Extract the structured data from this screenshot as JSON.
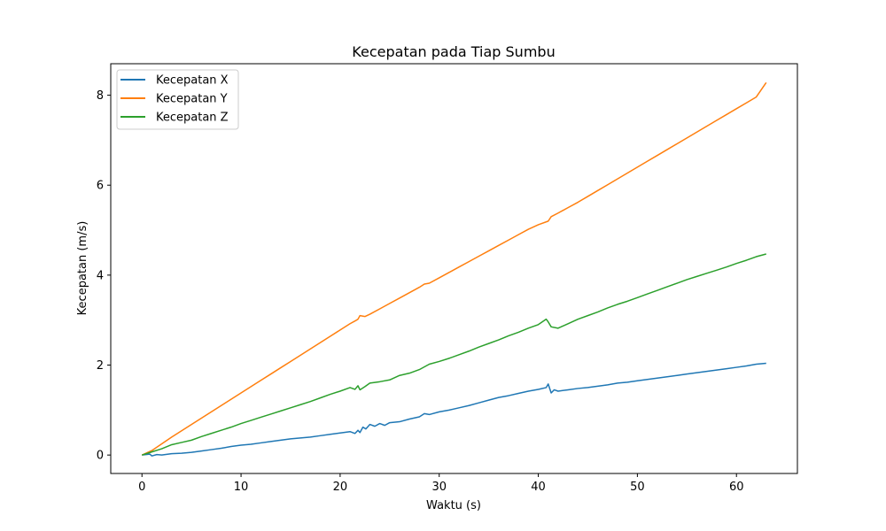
{
  "chart_data": {
    "type": "line",
    "title": "Kecepatan pada Tiap Sumbu",
    "xlabel": "Waktu (s)",
    "ylabel": "Kecepatan (m/s)",
    "xlim": [
      -3.15,
      66.15
    ],
    "ylim": [
      -0.41,
      8.7
    ],
    "xticks": [
      0,
      10,
      20,
      30,
      40,
      50,
      60
    ],
    "yticks": [
      0,
      2,
      4,
      6,
      8
    ],
    "grid": false,
    "legend_position": "upper-left",
    "series": [
      {
        "name": "Kecepatan X",
        "color": "#1f77b4",
        "points": [
          [
            0,
            0
          ],
          [
            0.8,
            0.02
          ],
          [
            1,
            -0.02
          ],
          [
            1.5,
            0.01
          ],
          [
            2,
            0
          ],
          [
            3,
            0.03
          ],
          [
            4,
            0.04
          ],
          [
            5,
            0.06
          ],
          [
            6,
            0.09
          ],
          [
            7,
            0.12
          ],
          [
            8,
            0.15
          ],
          [
            9,
            0.19
          ],
          [
            10,
            0.22
          ],
          [
            11,
            0.24
          ],
          [
            12,
            0.27
          ],
          [
            13,
            0.3
          ],
          [
            14,
            0.33
          ],
          [
            15,
            0.36
          ],
          [
            16,
            0.38
          ],
          [
            17,
            0.4
          ],
          [
            18,
            0.43
          ],
          [
            19,
            0.46
          ],
          [
            20,
            0.49
          ],
          [
            21,
            0.52
          ],
          [
            21.5,
            0.48
          ],
          [
            21.8,
            0.55
          ],
          [
            22,
            0.5
          ],
          [
            22.3,
            0.62
          ],
          [
            22.6,
            0.58
          ],
          [
            23,
            0.68
          ],
          [
            23.5,
            0.64
          ],
          [
            24,
            0.7
          ],
          [
            24.5,
            0.66
          ],
          [
            25,
            0.72
          ],
          [
            26,
            0.74
          ],
          [
            27,
            0.8
          ],
          [
            28,
            0.85
          ],
          [
            28.5,
            0.92
          ],
          [
            29,
            0.9
          ],
          [
            30,
            0.96
          ],
          [
            31,
            1.0
          ],
          [
            32,
            1.05
          ],
          [
            33,
            1.1
          ],
          [
            34,
            1.16
          ],
          [
            35,
            1.22
          ],
          [
            36,
            1.28
          ],
          [
            37,
            1.32
          ],
          [
            38,
            1.37
          ],
          [
            39,
            1.42
          ],
          [
            40,
            1.46
          ],
          [
            40.8,
            1.5
          ],
          [
            41,
            1.58
          ],
          [
            41.3,
            1.38
          ],
          [
            41.6,
            1.45
          ],
          [
            42,
            1.42
          ],
          [
            43,
            1.45
          ],
          [
            44,
            1.48
          ],
          [
            45,
            1.5
          ],
          [
            46,
            1.53
          ],
          [
            47,
            1.56
          ],
          [
            48,
            1.6
          ],
          [
            49,
            1.62
          ],
          [
            50,
            1.65
          ],
          [
            51,
            1.68
          ],
          [
            52,
            1.71
          ],
          [
            53,
            1.74
          ],
          [
            54,
            1.77
          ],
          [
            55,
            1.8
          ],
          [
            56,
            1.83
          ],
          [
            57,
            1.86
          ],
          [
            58,
            1.89
          ],
          [
            59,
            1.92
          ],
          [
            60,
            1.95
          ],
          [
            61,
            1.98
          ],
          [
            62,
            2.02
          ],
          [
            63,
            2.04
          ]
        ]
      },
      {
        "name": "Kecepatan Y",
        "color": "#ff7f0e",
        "points": [
          [
            0,
            0
          ],
          [
            1,
            0.1
          ],
          [
            2,
            0.25
          ],
          [
            3,
            0.4
          ],
          [
            4,
            0.54
          ],
          [
            5,
            0.68
          ],
          [
            6,
            0.82
          ],
          [
            7,
            0.96
          ],
          [
            8,
            1.1
          ],
          [
            9,
            1.24
          ],
          [
            10,
            1.38
          ],
          [
            11,
            1.52
          ],
          [
            12,
            1.66
          ],
          [
            13,
            1.8
          ],
          [
            14,
            1.94
          ],
          [
            15,
            2.08
          ],
          [
            16,
            2.22
          ],
          [
            17,
            2.36
          ],
          [
            18,
            2.5
          ],
          [
            19,
            2.64
          ],
          [
            20,
            2.78
          ],
          [
            21,
            2.92
          ],
          [
            21.5,
            2.98
          ],
          [
            21.8,
            3.02
          ],
          [
            22,
            3.1
          ],
          [
            22.5,
            3.08
          ],
          [
            23,
            3.13
          ],
          [
            24,
            3.25
          ],
          [
            25,
            3.37
          ],
          [
            26,
            3.49
          ],
          [
            27,
            3.61
          ],
          [
            28,
            3.73
          ],
          [
            28.5,
            3.8
          ],
          [
            29,
            3.82
          ],
          [
            30,
            3.94
          ],
          [
            31,
            4.06
          ],
          [
            32,
            4.18
          ],
          [
            33,
            4.3
          ],
          [
            34,
            4.42
          ],
          [
            35,
            4.54
          ],
          [
            36,
            4.66
          ],
          [
            37,
            4.78
          ],
          [
            38,
            4.9
          ],
          [
            39,
            5.02
          ],
          [
            40,
            5.12
          ],
          [
            41,
            5.2
          ],
          [
            41.3,
            5.3
          ],
          [
            42,
            5.38
          ],
          [
            43,
            5.5
          ],
          [
            44,
            5.62
          ],
          [
            45,
            5.75
          ],
          [
            46,
            5.88
          ],
          [
            47,
            6.01
          ],
          [
            48,
            6.14
          ],
          [
            49,
            6.27
          ],
          [
            50,
            6.4
          ],
          [
            51,
            6.53
          ],
          [
            52,
            6.66
          ],
          [
            53,
            6.79
          ],
          [
            54,
            6.92
          ],
          [
            55,
            7.05
          ],
          [
            56,
            7.18
          ],
          [
            57,
            7.31
          ],
          [
            58,
            7.44
          ],
          [
            59,
            7.57
          ],
          [
            60,
            7.7
          ],
          [
            61,
            7.83
          ],
          [
            62,
            7.96
          ],
          [
            63,
            8.28
          ]
        ]
      },
      {
        "name": "Kecepatan Z",
        "color": "#2ca02c",
        "points": [
          [
            0,
            0
          ],
          [
            1,
            0.07
          ],
          [
            2,
            0.14
          ],
          [
            3,
            0.23
          ],
          [
            4,
            0.28
          ],
          [
            5,
            0.33
          ],
          [
            6,
            0.41
          ],
          [
            7,
            0.48
          ],
          [
            8,
            0.55
          ],
          [
            9,
            0.62
          ],
          [
            10,
            0.7
          ],
          [
            11,
            0.77
          ],
          [
            12,
            0.84
          ],
          [
            13,
            0.91
          ],
          [
            14,
            0.98
          ],
          [
            15,
            1.05
          ],
          [
            16,
            1.12
          ],
          [
            17,
            1.19
          ],
          [
            18,
            1.27
          ],
          [
            19,
            1.35
          ],
          [
            20,
            1.42
          ],
          [
            21,
            1.5
          ],
          [
            21.5,
            1.46
          ],
          [
            21.8,
            1.54
          ],
          [
            22,
            1.45
          ],
          [
            22.5,
            1.52
          ],
          [
            23,
            1.6
          ],
          [
            24,
            1.63
          ],
          [
            25,
            1.67
          ],
          [
            26,
            1.77
          ],
          [
            27,
            1.82
          ],
          [
            28,
            1.9
          ],
          [
            29,
            2.02
          ],
          [
            30,
            2.08
          ],
          [
            31,
            2.15
          ],
          [
            32,
            2.23
          ],
          [
            33,
            2.31
          ],
          [
            34,
            2.4
          ],
          [
            35,
            2.48
          ],
          [
            36,
            2.56
          ],
          [
            37,
            2.65
          ],
          [
            38,
            2.73
          ],
          [
            39,
            2.82
          ],
          [
            40,
            2.9
          ],
          [
            40.8,
            3.02
          ],
          [
            41,
            2.96
          ],
          [
            41.3,
            2.85
          ],
          [
            42,
            2.82
          ],
          [
            43,
            2.92
          ],
          [
            44,
            3.02
          ],
          [
            45,
            3.1
          ],
          [
            46,
            3.18
          ],
          [
            47,
            3.27
          ],
          [
            48,
            3.35
          ],
          [
            49,
            3.42
          ],
          [
            50,
            3.5
          ],
          [
            51,
            3.58
          ],
          [
            52,
            3.66
          ],
          [
            53,
            3.74
          ],
          [
            54,
            3.82
          ],
          [
            55,
            3.9
          ],
          [
            56,
            3.97
          ],
          [
            57,
            4.04
          ],
          [
            58,
            4.11
          ],
          [
            59,
            4.18
          ],
          [
            60,
            4.26
          ],
          [
            61,
            4.33
          ],
          [
            62,
            4.41
          ],
          [
            63,
            4.47
          ]
        ]
      }
    ]
  }
}
